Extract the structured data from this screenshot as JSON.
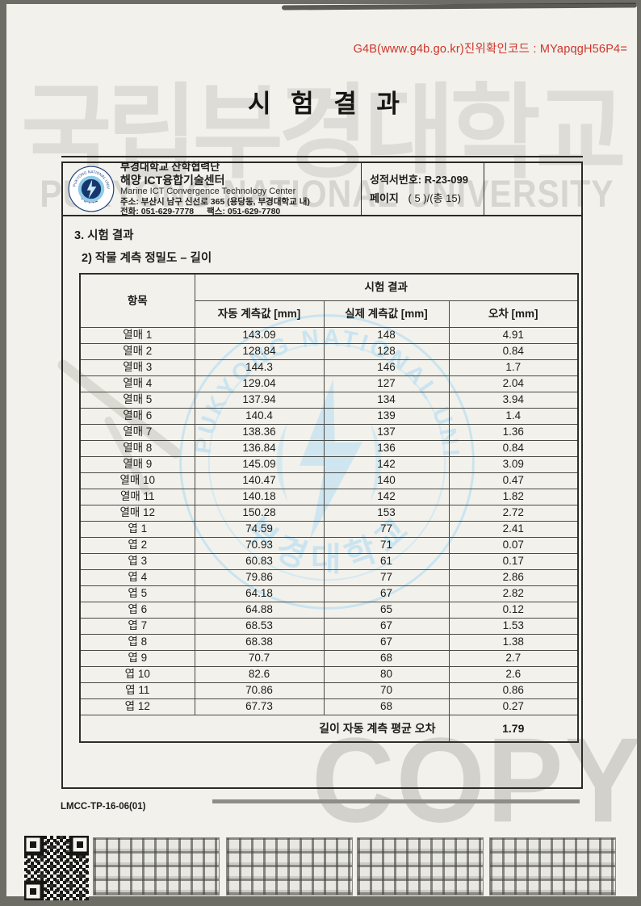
{
  "verification": {
    "code_line": "G4B(www.g4b.go.kr)진위확인코드 : MYapqgH56P4="
  },
  "title": "시 험 결 과",
  "letterhead": {
    "org_line1": "부경대학교 산학협력단",
    "org_line2": "해양 ICT융합기술센터",
    "org_line3": "Marine ICT Convergence Technology Center",
    "address": "주소: 부산시 남구 신선로 365 (용당동, 부경대학교 내)",
    "phone": "전화: 051-629-7778",
    "fax": "팩스: 051-629-7780",
    "report_no_label": "성적서번호:",
    "report_no": "R-23-099",
    "page_label": "페이지",
    "page_value": "( 5 )/(총 15)"
  },
  "section": {
    "heading": "3. 시험 결과",
    "subheading": "2) 작물 계측 정밀도 – 길이"
  },
  "table": {
    "col_item": "항목",
    "group_header": "시험 결과",
    "columns": [
      "자동 계측값 [mm]",
      "실제 계측값 [mm]",
      "오차 [mm]"
    ],
    "rows": [
      {
        "item": "열매 1",
        "auto": "143.09",
        "actual": "148",
        "error": "4.91"
      },
      {
        "item": "열매 2",
        "auto": "128.84",
        "actual": "128",
        "error": "0.84"
      },
      {
        "item": "열매 3",
        "auto": "144.3",
        "actual": "146",
        "error": "1.7"
      },
      {
        "item": "열매 4",
        "auto": "129.04",
        "actual": "127",
        "error": "2.04"
      },
      {
        "item": "열매 5",
        "auto": "137.94",
        "actual": "134",
        "error": "3.94"
      },
      {
        "item": "열매 6",
        "auto": "140.4",
        "actual": "139",
        "error": "1.4"
      },
      {
        "item": "열매 7",
        "auto": "138.36",
        "actual": "137",
        "error": "1.36"
      },
      {
        "item": "열매 8",
        "auto": "136.84",
        "actual": "136",
        "error": "0.84"
      },
      {
        "item": "열매 9",
        "auto": "145.09",
        "actual": "142",
        "error": "3.09"
      },
      {
        "item": "열매 10",
        "auto": "140.47",
        "actual": "140",
        "error": "0.47"
      },
      {
        "item": "열매 11",
        "auto": "140.18",
        "actual": "142",
        "error": "1.82"
      },
      {
        "item": "열매 12",
        "auto": "150.28",
        "actual": "153",
        "error": "2.72"
      },
      {
        "item": "엽 1",
        "auto": "74.59",
        "actual": "77",
        "error": "2.41"
      },
      {
        "item": "엽 2",
        "auto": "70.93",
        "actual": "71",
        "error": "0.07"
      },
      {
        "item": "엽 3",
        "auto": "60.83",
        "actual": "61",
        "error": "0.17"
      },
      {
        "item": "엽 4",
        "auto": "79.86",
        "actual": "77",
        "error": "2.86"
      },
      {
        "item": "엽 5",
        "auto": "64.18",
        "actual": "67",
        "error": "2.82"
      },
      {
        "item": "엽 6",
        "auto": "64.88",
        "actual": "65",
        "error": "0.12"
      },
      {
        "item": "엽 7",
        "auto": "68.53",
        "actual": "67",
        "error": "1.53"
      },
      {
        "item": "엽 8",
        "auto": "68.38",
        "actual": "67",
        "error": "1.38"
      },
      {
        "item": "엽 9",
        "auto": "70.7",
        "actual": "68",
        "error": "2.7"
      },
      {
        "item": "엽 10",
        "auto": "82.6",
        "actual": "80",
        "error": "2.6"
      },
      {
        "item": "엽 11",
        "auto": "70.86",
        "actual": "70",
        "error": "0.86"
      },
      {
        "item": "엽 12",
        "auto": "67.73",
        "actual": "68",
        "error": "0.27"
      }
    ],
    "footer_label": "길이 자동 계측 평균 오차",
    "footer_value": "1.79"
  },
  "footer": {
    "doc_code": "LMCC-TP-16-06(01)"
  },
  "watermarks": {
    "korean": "국립부경대학교",
    "english": "PUKYONG NATIONAL UNIVERSITY",
    "copy": "COPY",
    "seal_text_top": "PUKYONG NATIONAL UNIVERSITY",
    "seal_text_bottom": "부 경 대 학 교"
  },
  "colors": {
    "verification_red": "#cf342b",
    "seal_light_blue": "#c3e2f1",
    "logo_navy": "#1d3f7a",
    "logo_light_blue": "#8ecbe8",
    "page_background": "#f2f1eb"
  }
}
